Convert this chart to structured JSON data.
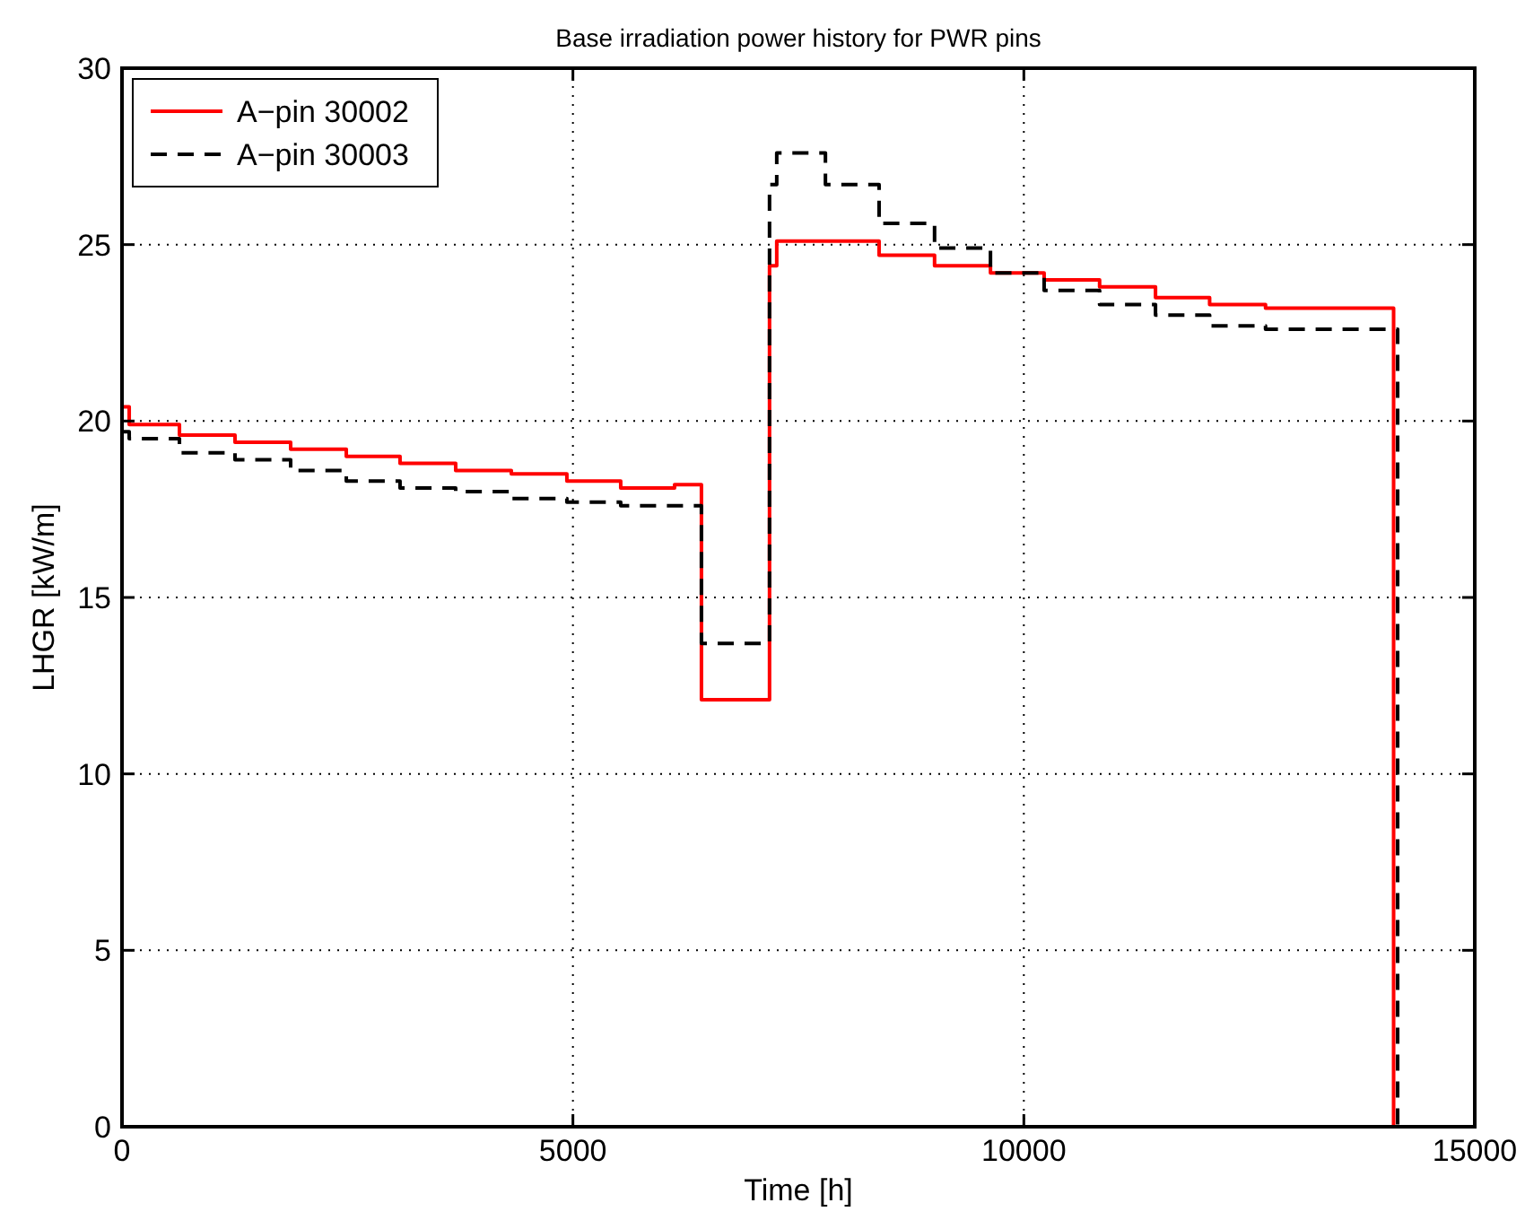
{
  "chart_data": {
    "type": "step",
    "title": "Base irradiation power history for PWR pins",
    "xlabel": "Time [h]",
    "ylabel": "LHGR [kW/m]",
    "xlim": [
      0,
      15000
    ],
    "xticks": [
      0,
      5000,
      10000,
      15000
    ],
    "ylim": [
      0,
      30
    ],
    "yticks": [
      0,
      5,
      10,
      15,
      20,
      25,
      30
    ],
    "grid": true,
    "legend": "top left",
    "series": [
      {
        "name": "A−pin 30002",
        "color": "#ff0000",
        "line_style": "solid",
        "x": [
          0,
          80,
          637,
          1253,
          1870,
          2487,
          3083,
          3700,
          4317,
          4933,
          5530,
          6127,
          6425,
          7180,
          7260,
          8395,
          9010,
          9630,
          10225,
          10840,
          11460,
          12060,
          12680,
          14100
        ],
        "values": [
          20.4,
          19.9,
          19.6,
          19.4,
          19.2,
          19.0,
          18.8,
          18.6,
          18.5,
          18.3,
          18.1,
          18.2,
          12.1,
          24.4,
          25.1,
          24.7,
          24.4,
          24.2,
          24.0,
          23.8,
          23.5,
          23.3,
          23.2,
          0
        ]
      },
      {
        "name": "A−pin 30003",
        "color": "#000000",
        "line_style": "dashed",
        "x": [
          0,
          80,
          637,
          1253,
          1870,
          2487,
          3083,
          3700,
          4317,
          4933,
          5530,
          6127,
          6425,
          7180,
          7260,
          7800,
          8395,
          9010,
          9630,
          10225,
          10840,
          11460,
          12060,
          12680,
          14145
        ],
        "values": [
          19.7,
          19.5,
          19.1,
          18.9,
          18.6,
          18.3,
          18.1,
          18.0,
          17.8,
          17.7,
          17.6,
          17.6,
          13.7,
          26.7,
          27.6,
          26.7,
          25.6,
          24.9,
          24.2,
          23.7,
          23.3,
          23.0,
          22.7,
          22.6,
          0
        ]
      }
    ]
  }
}
